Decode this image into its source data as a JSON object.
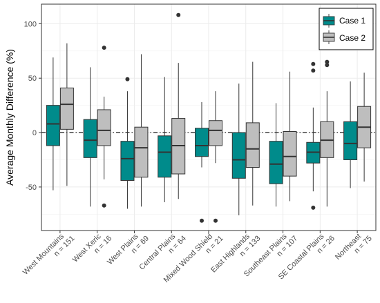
{
  "chart_data": {
    "type": "boxplot",
    "title": "",
    "xlabel": "",
    "ylabel": "Average Monthly Difference (%)",
    "ylim": [
      -90,
      118
    ],
    "yticks": [
      -50,
      0,
      50,
      100
    ],
    "grid": true,
    "legend_position": "top-right",
    "reference_line": 0,
    "categories": [
      {
        "name": "West Mountains",
        "n": "n = 151"
      },
      {
        "name": "West Xeric",
        "n": "n = 16"
      },
      {
        "name": "West Plains",
        "n": "n = 69"
      },
      {
        "name": "Central Plains",
        "n": "n = 64"
      },
      {
        "name": "Mixed Wood Shield",
        "n": "n = 21"
      },
      {
        "name": "East Highlands",
        "n": "n = 133"
      },
      {
        "name": "Southeast Plains",
        "n": "n = 107"
      },
      {
        "name": "SE Coastal Plains",
        "n": "n = 26"
      },
      {
        "name": "Northeast",
        "n": "n = 75"
      }
    ],
    "series": [
      {
        "name": "Case 1",
        "color": "#008b8b",
        "boxes": [
          {
            "whisker_low": -53,
            "q1": -12,
            "median": 8,
            "q3": 25,
            "whisker_high": 69,
            "outliers": []
          },
          {
            "whisker_low": -68,
            "q1": -23,
            "median": -7,
            "q3": 12,
            "whisker_high": 60,
            "outliers": []
          },
          {
            "whisker_low": -70,
            "q1": -44,
            "median": -24,
            "q3": -8,
            "whisker_high": 38,
            "outliers": [
              49
            ]
          },
          {
            "whisker_low": -64,
            "q1": -41,
            "median": -18,
            "q3": -3,
            "whisker_high": 51,
            "outliers": []
          },
          {
            "whisker_low": -32,
            "q1": -22,
            "median": -12,
            "q3": 4,
            "whisker_high": 28,
            "outliers": [
              -81
            ]
          },
          {
            "whisker_low": -76,
            "q1": -42,
            "median": -25,
            "q3": 0,
            "whisker_high": 45,
            "outliers": []
          },
          {
            "whisker_low": -68,
            "q1": -47,
            "median": -29,
            "q3": -8,
            "whisker_high": 27,
            "outliers": []
          },
          {
            "whisker_low": -54,
            "q1": -28,
            "median": -18,
            "q3": -9,
            "whisker_high": 23,
            "outliers": [
              57,
              63,
              -69
            ]
          },
          {
            "whisker_low": -51,
            "q1": -25,
            "median": -10,
            "q3": 10,
            "whisker_high": 47,
            "outliers": []
          }
        ]
      },
      {
        "name": "Case 2",
        "color": "#bebebe",
        "boxes": [
          {
            "whisker_low": -49,
            "q1": 3,
            "median": 26,
            "q3": 41,
            "whisker_high": 82,
            "outliers": []
          },
          {
            "whisker_low": -43,
            "q1": -12,
            "median": 2,
            "q3": 21,
            "whisker_high": 33,
            "outliers": [
              78,
              -67
            ]
          },
          {
            "whisker_low": -68,
            "q1": -41,
            "median": -14,
            "q3": 5,
            "whisker_high": 72,
            "outliers": []
          },
          {
            "whisker_low": -61,
            "q1": -38,
            "median": -12,
            "q3": 13,
            "whisker_high": 64,
            "outliers": [
              108
            ]
          },
          {
            "whisker_low": -28,
            "q1": -12,
            "median": 2,
            "q3": 11,
            "whisker_high": 38,
            "outliers": [
              -81
            ]
          },
          {
            "whisker_low": -67,
            "q1": -32,
            "median": -15,
            "q3": 9,
            "whisker_high": 65,
            "outliers": []
          },
          {
            "whisker_low": -63,
            "q1": -40,
            "median": -22,
            "q3": 1,
            "whisker_high": 56,
            "outliers": []
          },
          {
            "whisker_low": -68,
            "q1": -23,
            "median": -7,
            "q3": 10,
            "whisker_high": 38,
            "outliers": [
              62,
              65
            ]
          },
          {
            "whisker_low": -45,
            "q1": -14,
            "median": 5,
            "q3": 24,
            "whisker_high": 55,
            "outliers": []
          }
        ]
      }
    ]
  }
}
